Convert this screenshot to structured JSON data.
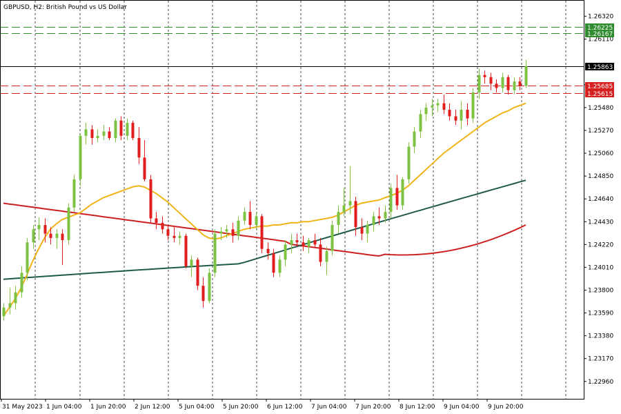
{
  "header": {
    "title": "GBPUSD, H2:  British Pound vs US Dollar"
  },
  "chart_data": {
    "type": "candlestick",
    "symbol": "GBPUSD",
    "timeframe": "H2",
    "y_range": [
      1.228,
      1.264
    ],
    "grid": "vertical dashed",
    "y_ticks": [
      "1.26320",
      "1.26110",
      "1.25690",
      "1.25480",
      "1.25270",
      "1.25060",
      "1.24850",
      "1.24640",
      "1.24430",
      "1.24220",
      "1.24010",
      "1.23800",
      "1.23590",
      "1.23380",
      "1.23170",
      "1.22960"
    ],
    "x_ticks": [
      "31 May 2023",
      "1 Jun 04:00",
      "1 Jun 20:00",
      "2 Jun 12:00",
      "5 Jun 04:00",
      "5 Jun 20:00",
      "6 Jun 12:00",
      "7 Jun 04:00",
      "7 Jun 20:00",
      "8 Jun 12:00",
      "9 Jun 04:00",
      "9 Jun 20:00"
    ],
    "level_lines": [
      {
        "value": 1.26225,
        "label": "1.26225",
        "color": "#2e8b2e",
        "style": "dashed"
      },
      {
        "value": 1.26167,
        "label": "1.26167",
        "color": "#2e8b2e",
        "style": "dashed"
      },
      {
        "value": 1.25863,
        "label": "1.25863",
        "color": "#000000",
        "style": "solid"
      },
      {
        "value": 1.25685,
        "label": "1.25685",
        "color": "#d62020",
        "style": "dashed"
      },
      {
        "value": 1.25615,
        "label": "1.25615",
        "color": "#d62020",
        "style": "dashed"
      }
    ],
    "colors": {
      "bull": "#7ec242",
      "bear": "#e11d1d",
      "ma_fast": "#f0b418",
      "ma_mid": "#1d5a4a",
      "ma_slow": "#cc1f1f"
    },
    "candles": [
      {
        "o": 1.2356,
        "h": 1.2368,
        "l": 1.2352,
        "c": 1.2364
      },
      {
        "o": 1.2364,
        "h": 1.2382,
        "l": 1.2358,
        "c": 1.2368
      },
      {
        "o": 1.2368,
        "h": 1.2384,
        "l": 1.2362,
        "c": 1.2378
      },
      {
        "o": 1.2378,
        "h": 1.2402,
        "l": 1.2373,
        "c": 1.2396
      },
      {
        "o": 1.2396,
        "h": 1.2428,
        "l": 1.2389,
        "c": 1.2424
      },
      {
        "o": 1.2424,
        "h": 1.244,
        "l": 1.2418,
        "c": 1.2436
      },
      {
        "o": 1.2436,
        "h": 1.2447,
        "l": 1.2426,
        "c": 1.244
      },
      {
        "o": 1.244,
        "h": 1.2446,
        "l": 1.2424,
        "c": 1.2432
      },
      {
        "o": 1.2432,
        "h": 1.2438,
        "l": 1.2422,
        "c": 1.2428
      },
      {
        "o": 1.2428,
        "h": 1.2436,
        "l": 1.2418,
        "c": 1.2432
      },
      {
        "o": 1.2432,
        "h": 1.2436,
        "l": 1.2403,
        "c": 1.2426
      },
      {
        "o": 1.2426,
        "h": 1.246,
        "l": 1.2422,
        "c": 1.2456
      },
      {
        "o": 1.2456,
        "h": 1.2486,
        "l": 1.2452,
        "c": 1.2482
      },
      {
        "o": 1.2482,
        "h": 1.2524,
        "l": 1.2476,
        "c": 1.2522
      },
      {
        "o": 1.2522,
        "h": 1.2534,
        "l": 1.2514,
        "c": 1.2528
      },
      {
        "o": 1.2528,
        "h": 1.2532,
        "l": 1.2514,
        "c": 1.252
      },
      {
        "o": 1.252,
        "h": 1.2528,
        "l": 1.2516,
        "c": 1.2522
      },
      {
        "o": 1.2522,
        "h": 1.2532,
        "l": 1.2518,
        "c": 1.2526
      },
      {
        "o": 1.2526,
        "h": 1.253,
        "l": 1.2518,
        "c": 1.252
      },
      {
        "o": 1.252,
        "h": 1.2538,
        "l": 1.2516,
        "c": 1.2536
      },
      {
        "o": 1.2536,
        "h": 1.254,
        "l": 1.2518,
        "c": 1.2522
      },
      {
        "o": 1.2522,
        "h": 1.2538,
        "l": 1.2518,
        "c": 1.2534
      },
      {
        "o": 1.2534,
        "h": 1.2536,
        "l": 1.2518,
        "c": 1.252
      },
      {
        "o": 1.252,
        "h": 1.253,
        "l": 1.2496,
        "c": 1.2502
      },
      {
        "o": 1.2502,
        "h": 1.2518,
        "l": 1.248,
        "c": 1.2482
      },
      {
        "o": 1.2482,
        "h": 1.2486,
        "l": 1.2442,
        "c": 1.2446
      },
      {
        "o": 1.2446,
        "h": 1.2452,
        "l": 1.2436,
        "c": 1.2442
      },
      {
        "o": 1.2442,
        "h": 1.2448,
        "l": 1.2432,
        "c": 1.2436
      },
      {
        "o": 1.2436,
        "h": 1.244,
        "l": 1.2426,
        "c": 1.243
      },
      {
        "o": 1.243,
        "h": 1.2438,
        "l": 1.2424,
        "c": 1.2428
      },
      {
        "o": 1.2428,
        "h": 1.2434,
        "l": 1.2422,
        "c": 1.243
      },
      {
        "o": 1.243,
        "h": 1.2432,
        "l": 1.24,
        "c": 1.2402
      },
      {
        "o": 1.2402,
        "h": 1.2412,
        "l": 1.2392,
        "c": 1.2408
      },
      {
        "o": 1.2408,
        "h": 1.241,
        "l": 1.238,
        "c": 1.2384
      },
      {
        "o": 1.2384,
        "h": 1.2392,
        "l": 1.2364,
        "c": 1.237
      },
      {
        "o": 1.237,
        "h": 1.24,
        "l": 1.2368,
        "c": 1.2396
      },
      {
        "o": 1.2396,
        "h": 1.2436,
        "l": 1.2392,
        "c": 1.2432
      },
      {
        "o": 1.2432,
        "h": 1.2438,
        "l": 1.2426,
        "c": 1.2434
      },
      {
        "o": 1.2434,
        "h": 1.244,
        "l": 1.2428,
        "c": 1.2436
      },
      {
        "o": 1.2436,
        "h": 1.2442,
        "l": 1.2424,
        "c": 1.243
      },
      {
        "o": 1.243,
        "h": 1.2448,
        "l": 1.2426,
        "c": 1.2444
      },
      {
        "o": 1.2444,
        "h": 1.2456,
        "l": 1.244,
        "c": 1.2452
      },
      {
        "o": 1.2452,
        "h": 1.2462,
        "l": 1.2436,
        "c": 1.244
      },
      {
        "o": 1.244,
        "h": 1.2452,
        "l": 1.2436,
        "c": 1.2448
      },
      {
        "o": 1.2448,
        "h": 1.245,
        "l": 1.2414,
        "c": 1.2418
      },
      {
        "o": 1.2418,
        "h": 1.2424,
        "l": 1.2408,
        "c": 1.2414
      },
      {
        "o": 1.2414,
        "h": 1.2418,
        "l": 1.2392,
        "c": 1.2396
      },
      {
        "o": 1.2396,
        "h": 1.2412,
        "l": 1.2392,
        "c": 1.2408
      },
      {
        "o": 1.2408,
        "h": 1.2426,
        "l": 1.2402,
        "c": 1.2422
      },
      {
        "o": 1.2422,
        "h": 1.2432,
        "l": 1.2414,
        "c": 1.2426
      },
      {
        "o": 1.2426,
        "h": 1.2432,
        "l": 1.242,
        "c": 1.2424
      },
      {
        "o": 1.2424,
        "h": 1.243,
        "l": 1.2416,
        "c": 1.242
      },
      {
        "o": 1.242,
        "h": 1.2428,
        "l": 1.2414,
        "c": 1.2426
      },
      {
        "o": 1.2426,
        "h": 1.2432,
        "l": 1.242,
        "c": 1.2422
      },
      {
        "o": 1.2422,
        "h": 1.2428,
        "l": 1.2402,
        "c": 1.2406
      },
      {
        "o": 1.2406,
        "h": 1.242,
        "l": 1.2394,
        "c": 1.2416
      },
      {
        "o": 1.2416,
        "h": 1.2444,
        "l": 1.2412,
        "c": 1.244
      },
      {
        "o": 1.244,
        "h": 1.2458,
        "l": 1.2432,
        "c": 1.2452
      },
      {
        "o": 1.2452,
        "h": 1.2474,
        "l": 1.2448,
        "c": 1.2458
      },
      {
        "o": 1.2458,
        "h": 1.2494,
        "l": 1.245,
        "c": 1.2462
      },
      {
        "o": 1.2462,
        "h": 1.2466,
        "l": 1.243,
        "c": 1.2438
      },
      {
        "o": 1.2438,
        "h": 1.2446,
        "l": 1.2426,
        "c": 1.2432
      },
      {
        "o": 1.2432,
        "h": 1.2444,
        "l": 1.2424,
        "c": 1.244
      },
      {
        "o": 1.244,
        "h": 1.2452,
        "l": 1.2434,
        "c": 1.2448
      },
      {
        "o": 1.2448,
        "h": 1.2456,
        "l": 1.244,
        "c": 1.2446
      },
      {
        "o": 1.2446,
        "h": 1.2458,
        "l": 1.2442,
        "c": 1.2452
      },
      {
        "o": 1.2452,
        "h": 1.2478,
        "l": 1.2446,
        "c": 1.2474
      },
      {
        "o": 1.2474,
        "h": 1.2486,
        "l": 1.2454,
        "c": 1.2458
      },
      {
        "o": 1.2458,
        "h": 1.2484,
        "l": 1.2454,
        "c": 1.2482
      },
      {
        "o": 1.2482,
        "h": 1.2516,
        "l": 1.2478,
        "c": 1.2512
      },
      {
        "o": 1.2512,
        "h": 1.253,
        "l": 1.2506,
        "c": 1.2526
      },
      {
        "o": 1.2526,
        "h": 1.2546,
        "l": 1.252,
        "c": 1.2542
      },
      {
        "o": 1.2542,
        "h": 1.2552,
        "l": 1.2536,
        "c": 1.2548
      },
      {
        "o": 1.2548,
        "h": 1.2556,
        "l": 1.254,
        "c": 1.255
      },
      {
        "o": 1.255,
        "h": 1.2556,
        "l": 1.2544,
        "c": 1.2552
      },
      {
        "o": 1.2552,
        "h": 1.256,
        "l": 1.2542,
        "c": 1.2546
      },
      {
        "o": 1.2546,
        "h": 1.2552,
        "l": 1.2536,
        "c": 1.254
      },
      {
        "o": 1.254,
        "h": 1.2546,
        "l": 1.2532,
        "c": 1.2536
      },
      {
        "o": 1.2536,
        "h": 1.2554,
        "l": 1.2528,
        "c": 1.2546
      },
      {
        "o": 1.2546,
        "h": 1.2552,
        "l": 1.2532,
        "c": 1.2538
      },
      {
        "o": 1.2538,
        "h": 1.2566,
        "l": 1.2534,
        "c": 1.2562
      },
      {
        "o": 1.2562,
        "h": 1.2584,
        "l": 1.2556,
        "c": 1.2578
      },
      {
        "o": 1.2578,
        "h": 1.2582,
        "l": 1.257,
        "c": 1.2576
      },
      {
        "o": 1.2576,
        "h": 1.258,
        "l": 1.2564,
        "c": 1.257
      },
      {
        "o": 1.257,
        "h": 1.2574,
        "l": 1.2562,
        "c": 1.2566
      },
      {
        "o": 1.2566,
        "h": 1.258,
        "l": 1.2562,
        "c": 1.2576
      },
      {
        "o": 1.2576,
        "h": 1.2578,
        "l": 1.256,
        "c": 1.2564
      },
      {
        "o": 1.2564,
        "h": 1.2576,
        "l": 1.256,
        "c": 1.2572
      },
      {
        "o": 1.2572,
        "h": 1.2576,
        "l": 1.2564,
        "c": 1.2568
      },
      {
        "o": 1.2568,
        "h": 1.2592,
        "l": 1.2566,
        "c": 1.2586
      }
    ],
    "ma_fast": [
      1.2356,
      1.2364,
      1.2372,
      1.2382,
      1.2394,
      1.2407,
      1.2418,
      1.2428,
      1.2436,
      1.2441,
      1.2445,
      1.2447,
      1.2449,
      1.2451,
      1.2455,
      1.2459,
      1.2462,
      1.2465,
      1.2467,
      1.2469,
      1.2471,
      1.2473,
      1.2475,
      1.2476,
      1.2475,
      1.2472,
      1.2469,
      1.2465,
      1.2461,
      1.2456,
      1.2451,
      1.2446,
      1.2441,
      1.2436,
      1.2431,
      1.2428,
      1.2427,
      1.2428,
      1.243,
      1.2432,
      1.2434,
      1.2436,
      1.2437,
      1.2438,
      1.2439,
      1.2439,
      1.244,
      1.244,
      1.2441,
      1.2442,
      1.2442,
      1.2443,
      1.2443,
      1.2444,
      1.2445,
      1.2446,
      1.2447,
      1.2449,
      1.2452,
      1.2455,
      1.2458,
      1.246,
      1.2461,
      1.2462,
      1.2463,
      1.2465,
      1.2467,
      1.2469,
      1.2472,
      1.2476,
      1.2481,
      1.2486,
      1.2491,
      1.2496,
      1.2501,
      1.2506,
      1.251,
      1.2514,
      1.2518,
      1.2522,
      1.2526,
      1.253,
      1.2534,
      1.2537,
      1.254,
      1.2543,
      1.2545,
      1.2548,
      1.255,
      1.2552
    ]
  }
}
